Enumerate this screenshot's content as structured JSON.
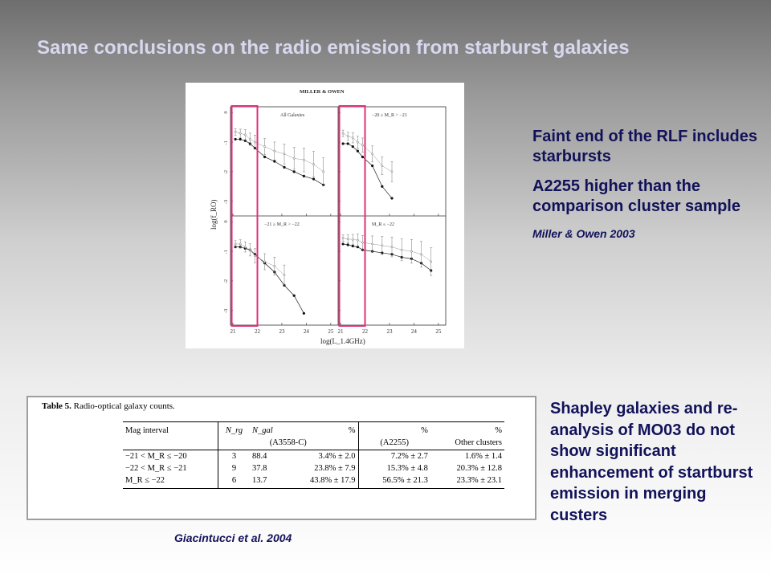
{
  "slide": {
    "title": "Same conclusions on the radio emission from starburst galaxies"
  },
  "figure": {
    "header": "MILLER & OWEN",
    "panels": [
      {
        "label": "All Galaxies"
      },
      {
        "label": "−20 ≥ M_R > −21"
      },
      {
        "label": "−21 ≥ M_R > −22"
      },
      {
        "label": "M_R ≤ −22"
      }
    ],
    "y_axis_label": "log(f_RO)",
    "x_axis_label": "log(L_1.4GHz)",
    "y_ticks": [
      "0",
      "-1",
      "-2",
      "-3"
    ],
    "x_ticks_left": [
      "21",
      "22",
      "23",
      "24",
      "25"
    ],
    "x_ticks_right": [
      "21",
      "22",
      "23",
      "24",
      "25"
    ],
    "highlight_color": "#e0307a"
  },
  "chart_data": {
    "type": "line",
    "xlabel": "log(L_1.4GHz)",
    "ylabel": "log(f_RO)",
    "xlim": [
      20.9,
      25.3
    ],
    "ylim": [
      -3.5,
      0.2
    ],
    "panels": [
      {
        "label": "All Galaxies",
        "series": [
          {
            "x": [
              21.1,
              21.3,
              21.5,
              21.7,
              21.9,
              22.3,
              22.7,
              23.1,
              23.5,
              23.9,
              24.3,
              24.7
            ],
            "y": [
              -0.9,
              -0.9,
              -0.95,
              -1.05,
              -1.2,
              -1.5,
              -1.65,
              -1.85,
              -2.0,
              -2.15,
              -2.25,
              -2.45
            ]
          },
          {
            "x": [
              21.1,
              21.3,
              21.5,
              21.7,
              21.9,
              22.3,
              22.7,
              23.1,
              23.5,
              23.9,
              24.3,
              24.7
            ],
            "y": [
              -0.65,
              -0.7,
              -0.75,
              -0.9,
              -1.0,
              -1.15,
              -1.3,
              -1.4,
              -1.55,
              -1.6,
              -1.75,
              -2.0
            ]
          }
        ]
      },
      {
        "label": "−20 ≥ M_R > −21",
        "series": [
          {
            "x": [
              21.1,
              21.3,
              21.5,
              21.7,
              21.9,
              22.3,
              22.7,
              23.1
            ],
            "y": [
              -1.05,
              -1.05,
              -1.15,
              -1.3,
              -1.5,
              -1.8,
              -2.5,
              -2.9
            ]
          },
          {
            "x": [
              21.1,
              21.3,
              21.5,
              21.7,
              21.9,
              22.3,
              22.7,
              23.1
            ],
            "y": [
              -0.7,
              -0.8,
              -0.85,
              -1.0,
              -1.1,
              -1.4,
              -1.8,
              -2.0
            ]
          }
        ]
      },
      {
        "label": "−21 ≥ M_R > −22",
        "series": [
          {
            "x": [
              21.1,
              21.3,
              21.5,
              21.7,
              21.9,
              22.3,
              22.7,
              23.1,
              23.5,
              23.9
            ],
            "y": [
              -0.85,
              -0.85,
              -0.9,
              -0.95,
              -1.1,
              -1.4,
              -1.7,
              -2.15,
              -2.5,
              -3.1
            ]
          },
          {
            "x": [
              21.1,
              21.3,
              21.5,
              21.7,
              21.9,
              22.3,
              22.7,
              23.1
            ],
            "y": [
              -0.75,
              -0.75,
              -0.85,
              -0.95,
              -1.15,
              -1.35,
              -1.5,
              -1.8
            ]
          }
        ]
      },
      {
        "label": "M_R ≤ −22",
        "series": [
          {
            "x": [
              21.1,
              21.3,
              21.5,
              21.7,
              21.9,
              22.3,
              22.7,
              23.1,
              23.5,
              23.9,
              24.3,
              24.7
            ],
            "y": [
              -0.75,
              -0.78,
              -0.82,
              -0.85,
              -0.95,
              -1.0,
              -1.05,
              -1.1,
              -1.2,
              -1.25,
              -1.4,
              -1.65
            ]
          },
          {
            "x": [
              21.1,
              21.3,
              21.5,
              21.7,
              21.9,
              22.3,
              22.7,
              23.1,
              23.5,
              23.9,
              24.3,
              24.7
            ],
            "y": [
              -0.55,
              -0.58,
              -0.6,
              -0.62,
              -0.7,
              -0.75,
              -0.8,
              -0.85,
              -0.95,
              -1.0,
              -1.1,
              -1.35
            ]
          }
        ]
      }
    ]
  },
  "highlight_boxes": [
    {
      "x_range": [
        20.95,
        22.0
      ]
    },
    {
      "x_range": [
        20.95,
        22.0
      ]
    }
  ],
  "right_panel": {
    "point1": "Faint end of the RLF includes starbursts",
    "point2": "A2255 higher than the comparison cluster sample",
    "citation": "Miller & Owen 2003"
  },
  "table": {
    "caption_bold": "Table 5.",
    "caption_text": "Radio-optical galaxy counts.",
    "headers": [
      "Mag interval",
      "N_rg",
      "N_gal",
      "%",
      "%",
      "%"
    ],
    "subheaders": [
      "",
      "",
      "(A3558-C)",
      "",
      "(A2255)",
      "Other clusters"
    ],
    "rows": [
      [
        "−21 < M_R ≤ −20",
        "3",
        "88.4",
        "3.4% ± 2.0",
        "7.2% ± 2.7",
        "1.6% ± 1.4"
      ],
      [
        "−22 < M_R ≤ −21",
        "9",
        "37.8",
        "23.8% ± 7.9",
        "15.3% ± 4.8",
        "20.3% ± 12.8"
      ],
      [
        "M_R ≤ −22",
        "6",
        "13.7",
        "43.8% ± 17.9",
        "56.5% ± 21.3",
        "23.3% ± 23.1"
      ]
    ]
  },
  "bottom_right_text": "Shapley galaxies and re-analysis of MO03 do not show significant enhancement of startburst emission in merging custers",
  "bottom_citation": "Giacintucci et al. 2004"
}
